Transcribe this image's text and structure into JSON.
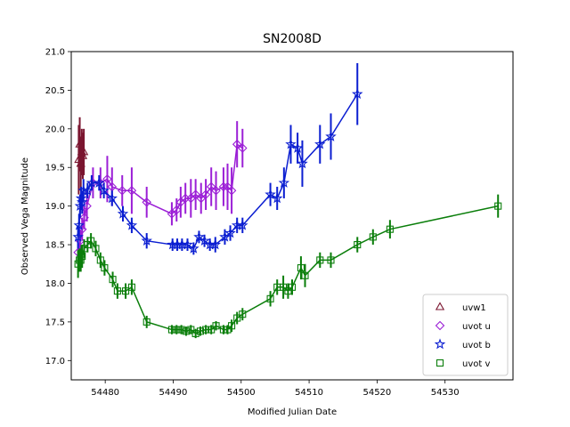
{
  "chart_data": {
    "type": "scatter",
    "title": "SN2008D",
    "xlabel": "Modified Julian Date",
    "ylabel": "Observed Vega Magnitude",
    "xlim": [
      54475,
      54540
    ],
    "ylim": [
      21.0,
      16.75
    ],
    "y_inverted": true,
    "xticks": [
      54480,
      54490,
      54500,
      54510,
      54520,
      54530
    ],
    "yticks": [
      17.0,
      17.5,
      18.0,
      18.5,
      19.0,
      19.5,
      20.0,
      20.5,
      21.0
    ],
    "grid": false,
    "legend_position": "lower-right",
    "series": [
      {
        "name": "uvw1",
        "marker": "triangle",
        "color": "#7b1630",
        "connected": true,
        "points": [
          [
            54476.1,
            19.6,
            0.45
          ],
          [
            54476.25,
            19.8,
            0.35
          ],
          [
            54476.4,
            19.55,
            0.35
          ],
          [
            54476.55,
            19.7,
            0.3
          ],
          [
            54476.7,
            19.65,
            0.3
          ],
          [
            54476.85,
            19.7,
            0.3
          ]
        ]
      },
      {
        "name": "uvot u",
        "marker": "diamond",
        "color": "#9b1fd6",
        "connected": true,
        "points": [
          [
            54476.0,
            18.4,
            0.12
          ],
          [
            54476.3,
            18.55,
            0.15
          ],
          [
            54476.6,
            18.7,
            0.15
          ],
          [
            54476.9,
            18.85,
            0.15
          ],
          [
            54477.3,
            19.0,
            0.2
          ],
          [
            54478.2,
            19.3,
            0.2
          ],
          [
            54479.3,
            19.3,
            0.2
          ],
          [
            54480.3,
            19.35,
            0.3
          ],
          [
            54481.0,
            19.25,
            0.25
          ],
          [
            54482.5,
            19.2,
            0.2
          ],
          [
            54483.9,
            19.2,
            0.3
          ],
          [
            54486.1,
            19.05,
            0.2
          ],
          [
            54489.8,
            18.9,
            0.15
          ],
          [
            54490.5,
            18.95,
            0.15
          ],
          [
            54491.1,
            19.05,
            0.2
          ],
          [
            54491.8,
            19.1,
            0.2
          ],
          [
            54492.6,
            19.1,
            0.25
          ],
          [
            54493.3,
            19.15,
            0.2
          ],
          [
            54494.1,
            19.1,
            0.2
          ],
          [
            54494.8,
            19.15,
            0.2
          ],
          [
            54495.6,
            19.25,
            0.25
          ],
          [
            54496.3,
            19.2,
            0.25
          ],
          [
            54497.4,
            19.25,
            0.25
          ],
          [
            54498.0,
            19.25,
            0.3
          ],
          [
            54498.6,
            19.2,
            0.3
          ],
          [
            54499.4,
            19.8,
            0.3
          ],
          [
            54500.2,
            19.75,
            0.25
          ]
        ]
      },
      {
        "name": "uvot b",
        "marker": "star",
        "color": "#0b1ed1",
        "connected": true,
        "points": [
          [
            54476.0,
            18.6,
            0.15
          ],
          [
            54476.15,
            18.75,
            0.15
          ],
          [
            54476.3,
            19.0,
            0.15
          ],
          [
            54476.45,
            19.1,
            0.15
          ],
          [
            54476.6,
            19.05,
            0.15
          ],
          [
            54476.8,
            19.2,
            0.15
          ],
          [
            54477.4,
            19.2,
            0.1
          ],
          [
            54478.0,
            19.3,
            0.1
          ],
          [
            54479.1,
            19.3,
            0.1
          ],
          [
            54479.8,
            19.2,
            0.1
          ],
          [
            54481.0,
            19.1,
            0.1
          ],
          [
            54482.6,
            18.9,
            0.1
          ],
          [
            54483.9,
            18.75,
            0.1
          ],
          [
            54486.1,
            18.55,
            0.1
          ],
          [
            54489.9,
            18.5,
            0.08
          ],
          [
            54490.6,
            18.5,
            0.08
          ],
          [
            54491.3,
            18.5,
            0.08
          ],
          [
            54492.1,
            18.5,
            0.08
          ],
          [
            54493.0,
            18.45,
            0.08
          ],
          [
            54493.8,
            18.6,
            0.08
          ],
          [
            54494.6,
            18.55,
            0.08
          ],
          [
            54495.4,
            18.5,
            0.08
          ],
          [
            54496.2,
            18.5,
            0.1
          ],
          [
            54497.6,
            18.6,
            0.1
          ],
          [
            54498.4,
            18.65,
            0.1
          ],
          [
            54499.4,
            18.75,
            0.1
          ],
          [
            54500.2,
            18.75,
            0.1
          ],
          [
            54504.3,
            19.15,
            0.15
          ],
          [
            54505.3,
            19.1,
            0.15
          ],
          [
            54506.3,
            19.3,
            0.2
          ],
          [
            54507.3,
            19.8,
            0.25
          ],
          [
            54508.3,
            19.75,
            0.2
          ],
          [
            54509.0,
            19.55,
            0.3
          ],
          [
            54511.6,
            19.8,
            0.25
          ],
          [
            54513.2,
            19.9,
            0.3
          ],
          [
            54517.1,
            20.45,
            0.4
          ]
        ]
      },
      {
        "name": "uvot v",
        "marker": "square",
        "color": "#0a7e0a",
        "connected": true,
        "points": [
          [
            54476.0,
            18.25,
            0.18
          ],
          [
            54476.2,
            18.3,
            0.15
          ],
          [
            54476.4,
            18.3,
            0.15
          ],
          [
            54476.6,
            18.35,
            0.15
          ],
          [
            54476.9,
            18.45,
            0.12
          ],
          [
            54477.4,
            18.5,
            0.1
          ],
          [
            54477.9,
            18.55,
            0.1
          ],
          [
            54478.6,
            18.45,
            0.1
          ],
          [
            54479.3,
            18.3,
            0.1
          ],
          [
            54479.9,
            18.2,
            0.1
          ],
          [
            54481.1,
            18.05,
            0.1
          ],
          [
            54481.8,
            17.9,
            0.1
          ],
          [
            54483.0,
            17.9,
            0.1
          ],
          [
            54483.9,
            17.95,
            0.1
          ],
          [
            54486.1,
            17.5,
            0.08
          ],
          [
            54489.8,
            17.4,
            0.06
          ],
          [
            54490.5,
            17.4,
            0.06
          ],
          [
            54491.2,
            17.4,
            0.06
          ],
          [
            54491.9,
            17.38,
            0.06
          ],
          [
            54492.6,
            17.4,
            0.06
          ],
          [
            54493.3,
            17.35,
            0.06
          ],
          [
            54494.0,
            17.38,
            0.06
          ],
          [
            54494.8,
            17.4,
            0.06
          ],
          [
            54495.6,
            17.4,
            0.06
          ],
          [
            54496.3,
            17.45,
            0.06
          ],
          [
            54497.4,
            17.4,
            0.06
          ],
          [
            54498.0,
            17.4,
            0.06
          ],
          [
            54498.6,
            17.45,
            0.08
          ],
          [
            54499.4,
            17.55,
            0.08
          ],
          [
            54500.2,
            17.6,
            0.08
          ],
          [
            54504.3,
            17.8,
            0.1
          ],
          [
            54505.3,
            17.95,
            0.1
          ],
          [
            54506.2,
            17.95,
            0.15
          ],
          [
            54506.9,
            17.9,
            0.1
          ],
          [
            54507.5,
            17.95,
            0.1
          ],
          [
            54508.8,
            18.2,
            0.15
          ],
          [
            54509.4,
            18.1,
            0.15
          ],
          [
            54511.6,
            18.3,
            0.1
          ],
          [
            54513.2,
            18.3,
            0.1
          ],
          [
            54517.1,
            18.5,
            0.1
          ],
          [
            54519.4,
            18.6,
            0.1
          ],
          [
            54521.9,
            18.7,
            0.12
          ],
          [
            54537.8,
            19.0,
            0.15
          ]
        ]
      }
    ]
  }
}
